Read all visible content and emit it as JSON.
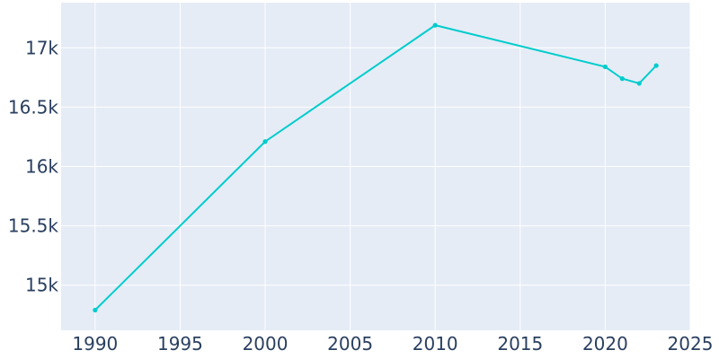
{
  "chart_data": {
    "type": "line",
    "title": "",
    "xlabel": "",
    "ylabel": "",
    "xlim": [
      1988,
      2025
    ],
    "ylim": [
      14620,
      17380
    ],
    "grid": true,
    "legend": "none",
    "colors": {
      "background": "#e5ecf6",
      "line": "#00cccc",
      "text": "#2a3f5f",
      "grid": "#ffffff"
    },
    "x_ticks": [
      {
        "value": 1990,
        "label": "1990"
      },
      {
        "value": 1995,
        "label": "1995"
      },
      {
        "value": 2000,
        "label": "2000"
      },
      {
        "value": 2005,
        "label": "2005"
      },
      {
        "value": 2010,
        "label": "2010"
      },
      {
        "value": 2015,
        "label": "2015"
      },
      {
        "value": 2020,
        "label": "2020"
      },
      {
        "value": 2025,
        "label": "2025"
      }
    ],
    "y_ticks": [
      {
        "value": 15000,
        "label": "15k"
      },
      {
        "value": 15500,
        "label": "15.5k"
      },
      {
        "value": 16000,
        "label": "16k"
      },
      {
        "value": 16500,
        "label": "16.5k"
      },
      {
        "value": 17000,
        "label": "17k"
      }
    ],
    "series": [
      {
        "points": [
          {
            "x": 1990,
            "y": 14790
          },
          {
            "x": 2000,
            "y": 16210
          },
          {
            "x": 2010,
            "y": 17190
          },
          {
            "x": 2020,
            "y": 16840
          },
          {
            "x": 2021,
            "y": 16740
          },
          {
            "x": 2022,
            "y": 16700
          },
          {
            "x": 2023,
            "y": 16850
          }
        ]
      }
    ]
  }
}
